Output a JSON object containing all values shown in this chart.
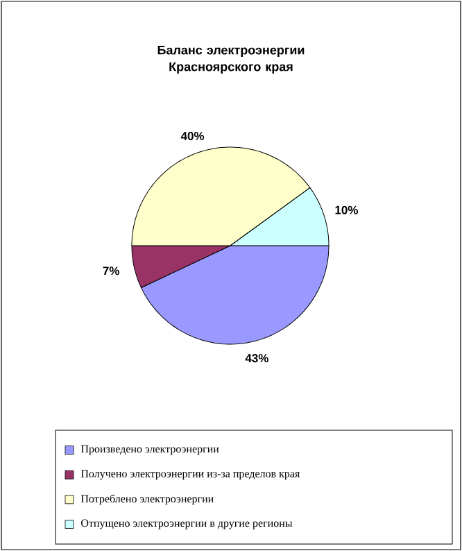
{
  "chart_data": {
    "type": "pie",
    "title": "Баланс электроэнергии Красноярского края",
    "categories": [
      "Произведено электроэнергии",
      "Получено электроэнергии из-за пределов края",
      "Потреблено электроэнергии",
      "Отпущено электроэнергии в другие регионы"
    ],
    "values": [
      43,
      7,
      40,
      10
    ],
    "colors": [
      "#9999ff",
      "#993366",
      "#ffffcc",
      "#ccffff"
    ],
    "value_labels": [
      "43%",
      "7%",
      "40%",
      "10%"
    ],
    "legend": "bottom"
  }
}
